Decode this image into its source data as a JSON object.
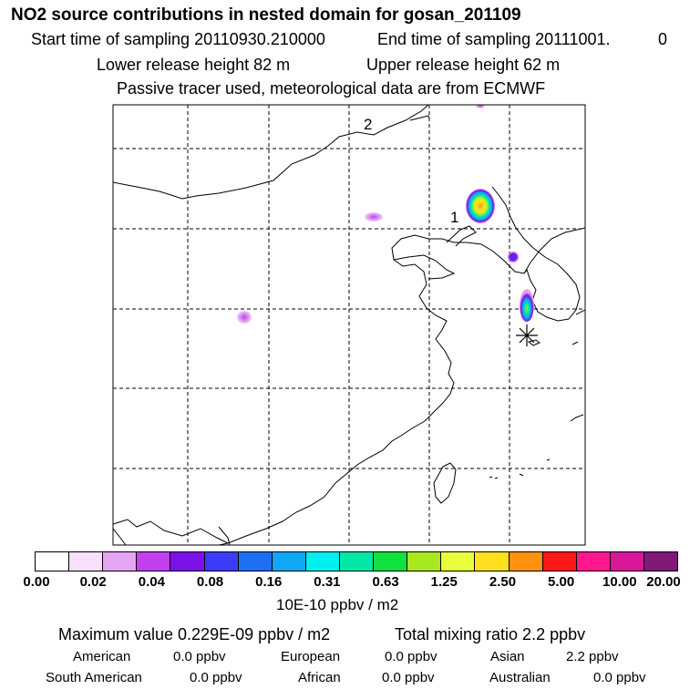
{
  "header": {
    "title": "NO2 source contributions in nested domain for gosan_201109",
    "start_time": "Start time of sampling 20110930.210000",
    "end_time": "End time of sampling 20111001.",
    "end_time_suffix": "0",
    "lower_release": "Lower release height   82 m",
    "upper_release": "Upper release height   62 m",
    "tracer_info": "Passive tracer used, meteorological data are from ECMWF"
  },
  "map": {
    "labels": [
      "2",
      "1"
    ],
    "receptor_marker": "asterisk-icon"
  },
  "legend": {
    "colors": [
      "#ffffff",
      "#f7e0fb",
      "#e5a5f3",
      "#c040f0",
      "#7b10e8",
      "#3c3cf8",
      "#1e6ef0",
      "#10a8f5",
      "#00f0f0",
      "#00e8a8",
      "#10e040",
      "#a8e820",
      "#e8ff40",
      "#ffe020",
      "#ff9010",
      "#ff1818",
      "#ff1890",
      "#d81898",
      "#801878"
    ],
    "ticks": [
      "0.00",
      "0.02",
      "0.04",
      "0.08",
      "0.16",
      "0.31",
      "0.63",
      "1.25",
      "2.50",
      "5.00",
      "10.00",
      "20.00"
    ],
    "unit": "10E-10 ppbv / m2"
  },
  "stats": {
    "max_value": "Maximum value  0.229E-09 ppbv / m2",
    "total_mixing": "Total mixing ratio        2.2 ppbv",
    "regions": [
      {
        "name": "American",
        "value": "0.0 ppbv"
      },
      {
        "name": "European",
        "value": "0.0 ppbv"
      },
      {
        "name": "Asian",
        "value": "2.2 ppbv"
      },
      {
        "name": "South American",
        "value": "0.0 ppbv"
      },
      {
        "name": "African",
        "value": "0.0 ppbv"
      },
      {
        "name": "Australian",
        "value": "0.0 ppbv"
      }
    ]
  }
}
